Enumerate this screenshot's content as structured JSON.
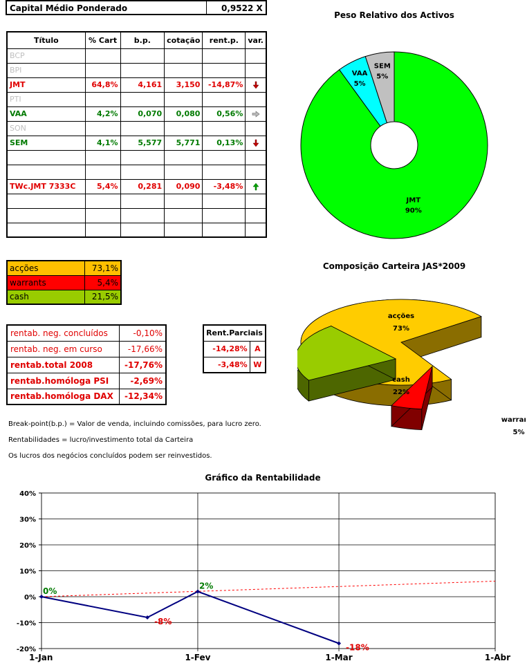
{
  "capital": {
    "label": "Capital Médio Ponderado",
    "value": "0,9522 X"
  },
  "titulos": {
    "headers": [
      "Título",
      "% Cart",
      "b.p.",
      "cotação",
      "rent.p.",
      "var."
    ],
    "rows": [
      {
        "name": "BCP",
        "pct": "",
        "bp": "",
        "cot": "",
        "rent": "",
        "var": "",
        "style": "gray"
      },
      {
        "name": "BPI",
        "pct": "",
        "bp": "",
        "cot": "",
        "rent": "",
        "var": "",
        "style": "gray"
      },
      {
        "name": "JMT",
        "pct": "64,8%",
        "bp": "4,161",
        "cot": "3,150",
        "rent": "-14,87%",
        "var": "down",
        "style": "red"
      },
      {
        "name": "PTI",
        "pct": "",
        "bp": "",
        "cot": "",
        "rent": "",
        "var": "",
        "style": "gray"
      },
      {
        "name": "VAA",
        "pct": "4,2%",
        "bp": "0,070",
        "cot": "0,080",
        "rent": "0,56%",
        "var": "right",
        "style": "green"
      },
      {
        "name": "SON",
        "pct": "",
        "bp": "",
        "cot": "",
        "rent": "",
        "var": "",
        "style": "gray"
      },
      {
        "name": "SEM",
        "pct": "4,1%",
        "bp": "5,577",
        "cot": "5,771",
        "rent": "0,13%",
        "var": "down",
        "style": "green"
      },
      {
        "name": "",
        "pct": "",
        "bp": "",
        "cot": "",
        "rent": "",
        "var": "",
        "style": ""
      },
      {
        "name": "",
        "pct": "",
        "bp": "",
        "cot": "",
        "rent": "",
        "var": "",
        "style": ""
      },
      {
        "name": "TWc.JMT 7333C",
        "pct": "5,4%",
        "bp": "0,281",
        "cot": "0,090",
        "rent": "-3,48%",
        "var": "up",
        "style": "red"
      },
      {
        "name": "",
        "pct": "",
        "bp": "",
        "cot": "",
        "rent": "",
        "var": "",
        "style": ""
      },
      {
        "name": "",
        "pct": "",
        "bp": "",
        "cot": "",
        "rent": "",
        "var": "",
        "style": ""
      },
      {
        "name": "",
        "pct": "",
        "bp": "",
        "cot": "",
        "rent": "",
        "var": "",
        "style": ""
      }
    ]
  },
  "composicao": [
    {
      "label": "acções",
      "value": "73,1%",
      "bg": "#ffc000"
    },
    {
      "label": "warrants",
      "value": "5,4%",
      "bg": "#ff0000"
    },
    {
      "label": "cash",
      "value": "21,5%",
      "bg": "#99cc00"
    }
  ],
  "rentab": [
    {
      "label": "rentab. neg. concluídos",
      "value": "-0,10%",
      "bold": false
    },
    {
      "label": "rentab. neg. em curso",
      "value": "-17,66%",
      "bold": false
    },
    {
      "label": "rentab.total 2008",
      "value": "-17,76%",
      "bold": true
    },
    {
      "label": "rentab.homóloga PSI",
      "value": "-2,69%",
      "bold": true
    },
    {
      "label": "rentab.homóloga DAX",
      "value": "-12,34%",
      "bold": true
    }
  ],
  "parciais": {
    "header": "Rent.Parciais",
    "rows": [
      {
        "value": "-14,28%",
        "tag": "A"
      },
      {
        "value": "-3,48%",
        "tag": "W"
      }
    ]
  },
  "notes": [
    "Break-point(b.p.) = Valor de venda, incluindo comissões, para lucro zero.",
    "Rentabilidades = lucro/investimento total da Carteira",
    "Os lucros dos negócios concluídos podem ser reinvestidos."
  ],
  "colors": {
    "green_slice": "#00ff00",
    "cyan_slice": "#00ffff",
    "gray_slice": "#c0c0c0",
    "accoes": "#ffcc00",
    "cash": "#99cc00",
    "warrants": "#ff0000",
    "line": "#000080",
    "trend": "#ff0000"
  },
  "chart_data": [
    {
      "type": "pie",
      "variant": "doughnut",
      "title": "Peso Relativo dos Activos",
      "slices": [
        {
          "label": "JMT",
          "value": 90,
          "display": "90%"
        },
        {
          "label": "VAA",
          "value": 5,
          "display": "5%"
        },
        {
          "label": "SEM",
          "value": 5,
          "display": "5%"
        }
      ]
    },
    {
      "type": "pie",
      "variant": "3d-exploded",
      "title": "Composição Carteira JAS*2009",
      "slices": [
        {
          "label": "acções",
          "value": 73,
          "display": "73%"
        },
        {
          "label": "warrants",
          "value": 5,
          "display": "5%"
        },
        {
          "label": "cash",
          "value": 22,
          "display": "22%"
        }
      ]
    },
    {
      "type": "line",
      "title": "Gráfico da Rentabilidade",
      "x_ticks": [
        "1-Jan",
        "1-Fev",
        "1-Mar",
        "1-Abr"
      ],
      "y_ticks": [
        "40%",
        "30%",
        "20%",
        "10%",
        "0%",
        "-10%",
        "-20%"
      ],
      "ylim": [
        -20,
        40
      ],
      "xlim": [
        "1-Jan",
        "1-Abr"
      ],
      "grid": true,
      "series": [
        {
          "points": [
            {
              "x": "1-Jan",
              "y": 0,
              "label": "0%"
            },
            {
              "x": "22-Jan",
              "y": -8,
              "label": "-8%"
            },
            {
              "x": "1-Fev",
              "y": 2,
              "label": "2%"
            },
            {
              "x": "1-Mar",
              "y": -18,
              "label": "-18%"
            }
          ]
        },
        {
          "style": "trendline",
          "points": [
            {
              "x": "1-Jan",
              "y": 0
            },
            {
              "x": "1-Abr",
              "y": 6
            }
          ]
        }
      ]
    }
  ]
}
